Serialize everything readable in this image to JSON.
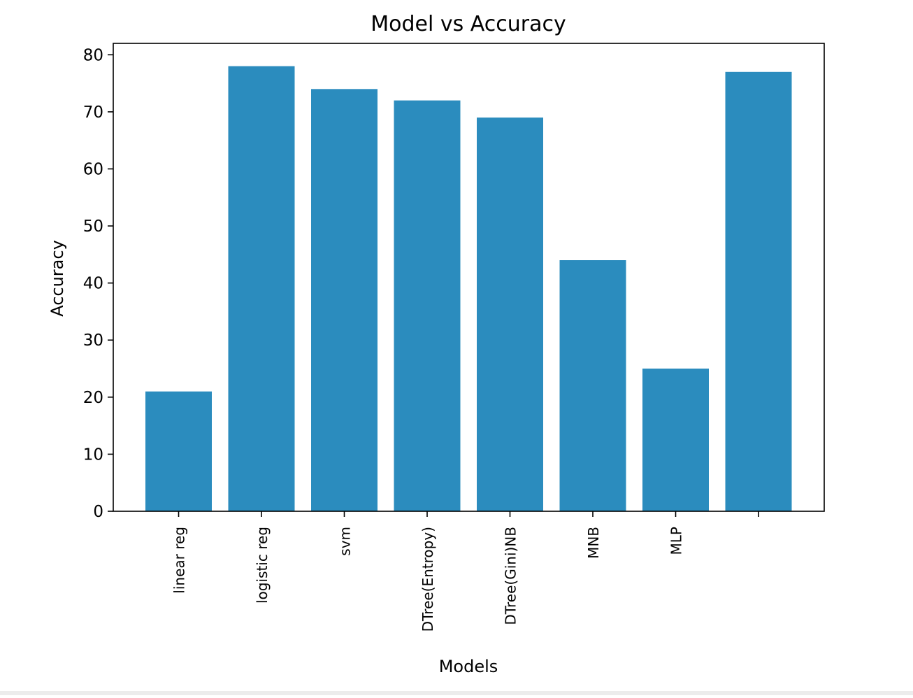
{
  "chart_data": {
    "type": "bar",
    "title": "Model vs Accuracy",
    "xlabel": "Models",
    "ylabel": "Accuracy",
    "categories": [
      "linear reg",
      "logistic reg",
      "svm",
      "DTree(Entropy)",
      "DTree(Gini)NB",
      "MNB",
      "MLP",
      ""
    ],
    "values": [
      21,
      78,
      74,
      72,
      69,
      44,
      25,
      77
    ],
    "ylim": [
      0,
      82
    ],
    "yticks": [
      "0",
      "10",
      "20",
      "30",
      "40",
      "50",
      "60",
      "70",
      "80"
    ],
    "grid": false,
    "bar_color": "#2b8cbe"
  }
}
